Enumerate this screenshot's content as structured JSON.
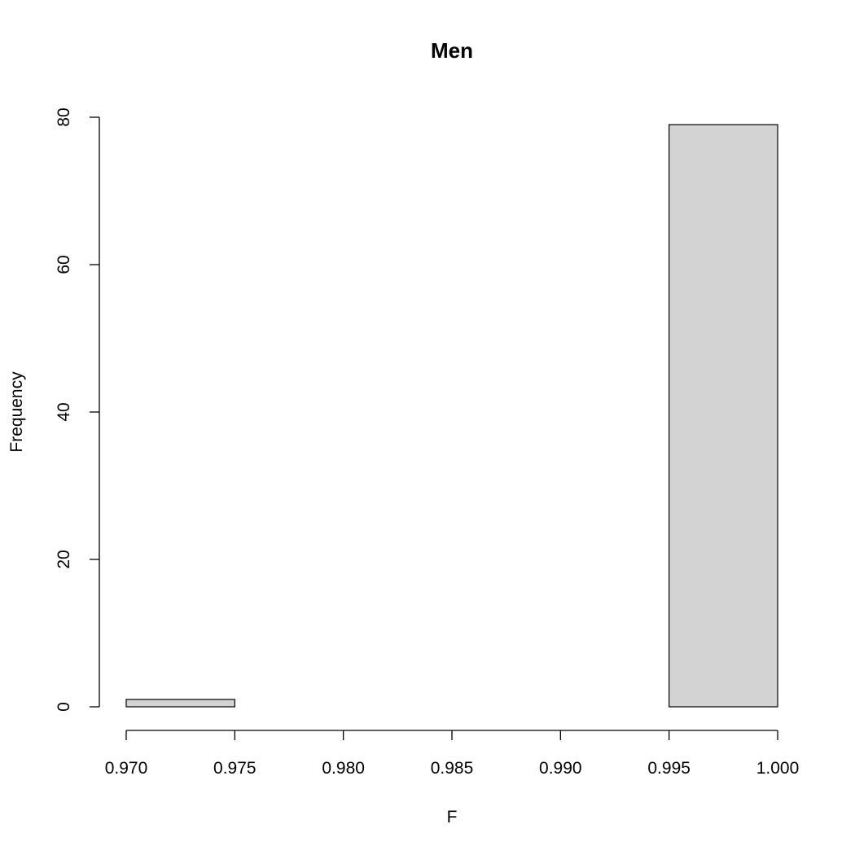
{
  "chart_data": {
    "type": "bar",
    "title": "Men",
    "xlabel": "F",
    "ylabel": "Frequency",
    "bins": [
      {
        "start": 0.97,
        "end": 0.975,
        "count": 1
      },
      {
        "start": 0.975,
        "end": 0.98,
        "count": 0
      },
      {
        "start": 0.98,
        "end": 0.985,
        "count": 0
      },
      {
        "start": 0.985,
        "end": 0.99,
        "count": 0
      },
      {
        "start": 0.99,
        "end": 0.995,
        "count": 0
      },
      {
        "start": 0.995,
        "end": 1.0,
        "count": 79
      }
    ],
    "xlim": [
      0.97,
      1.0
    ],
    "ylim": [
      0,
      80
    ],
    "x_ticks": [
      "0.970",
      "0.975",
      "0.980",
      "0.985",
      "0.990",
      "0.995",
      "1.000"
    ],
    "y_ticks": [
      "0",
      "20",
      "40",
      "60",
      "80"
    ],
    "bar_color": "#d3d3d3",
    "grid": false,
    "legend": false
  }
}
